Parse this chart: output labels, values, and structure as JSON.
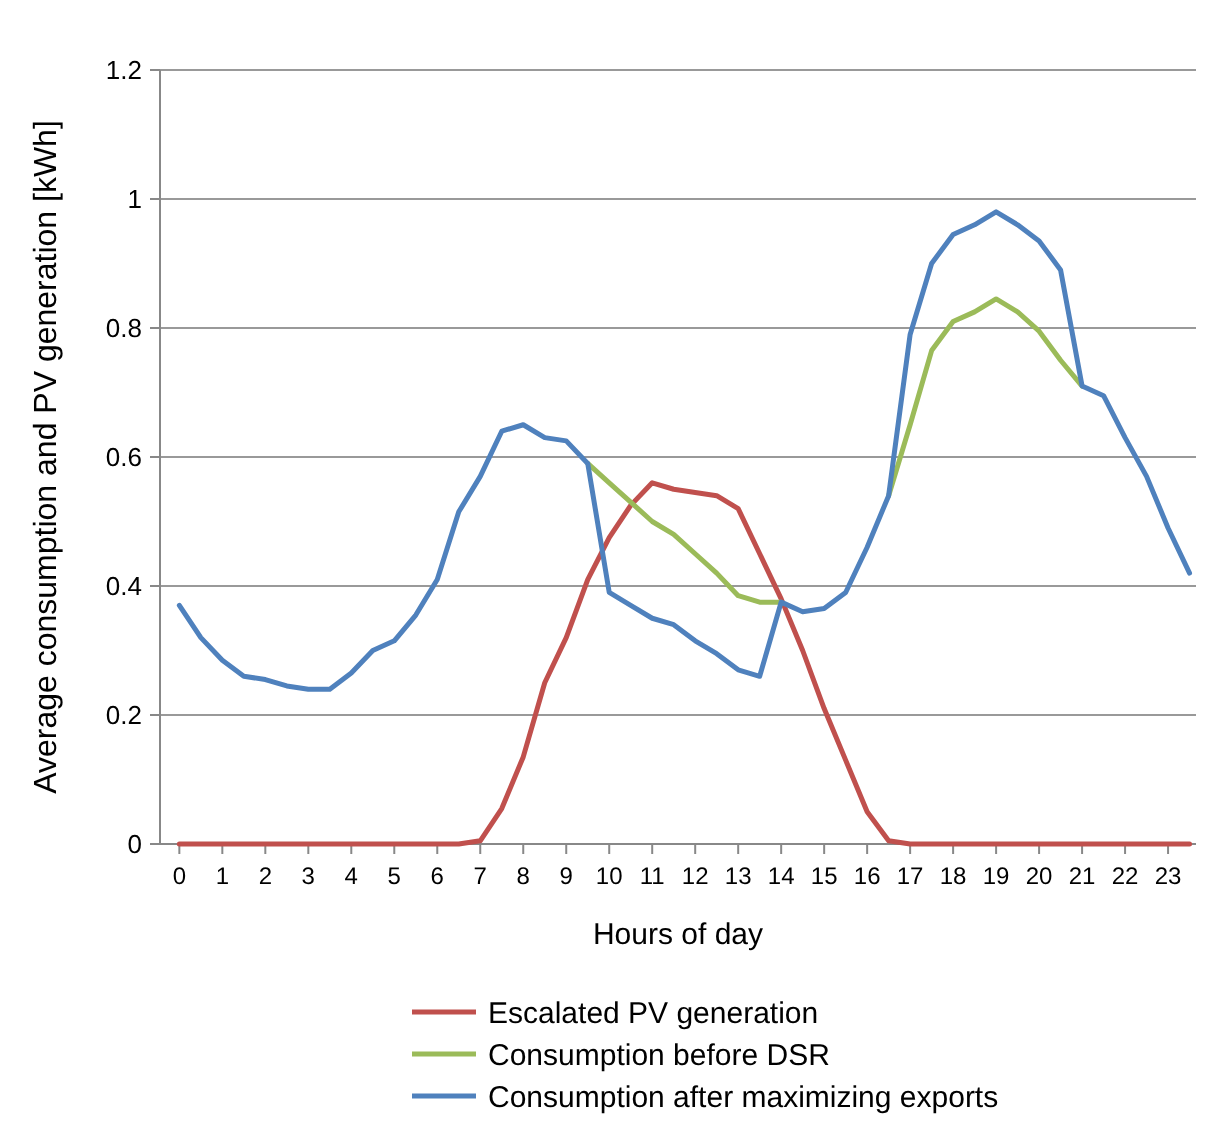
{
  "chart_data": {
    "type": "line",
    "xlabel": "Hours of day",
    "ylabel": "Average consumption and PV generation [kWh]",
    "x": [
      0,
      0.5,
      1,
      1.5,
      2,
      2.5,
      3,
      3.5,
      4,
      4.5,
      5,
      5.5,
      6,
      6.5,
      7,
      7.5,
      8,
      8.5,
      9,
      9.5,
      10,
      10.5,
      11,
      11.5,
      12,
      12.5,
      13,
      13.5,
      14,
      14.5,
      15,
      15.5,
      16,
      16.5,
      17,
      17.5,
      18,
      18.5,
      19,
      19.5,
      20,
      20.5,
      21,
      21.5,
      22,
      22.5,
      23,
      23.5
    ],
    "series": [
      {
        "name": "Escalated PV generation",
        "color": "#c0504d",
        "values": [
          0,
          0,
          0,
          0,
          0,
          0,
          0,
          0,
          0,
          0,
          0,
          0,
          0,
          0,
          0.005,
          0.055,
          0.135,
          0.25,
          0.32,
          0.41,
          0.475,
          0.525,
          0.56,
          0.55,
          0.545,
          0.54,
          0.52,
          0.45,
          0.38,
          0.3,
          0.21,
          0.13,
          0.05,
          0.005,
          0,
          0,
          0,
          0,
          0,
          0,
          0,
          0,
          0,
          0,
          0,
          0,
          0,
          0
        ]
      },
      {
        "name": "Consumption before DSR",
        "color": "#9bbb59",
        "values": [
          null,
          null,
          null,
          null,
          null,
          null,
          null,
          null,
          null,
          null,
          null,
          null,
          null,
          null,
          null,
          null,
          null,
          null,
          null,
          0.59,
          0.56,
          0.53,
          0.5,
          0.48,
          0.45,
          0.42,
          0.385,
          0.375,
          0.375,
          null,
          null,
          null,
          null,
          0.54,
          0.65,
          0.765,
          0.81,
          0.825,
          0.845,
          0.825,
          0.795,
          0.75,
          0.71,
          null,
          null,
          null,
          null,
          null
        ]
      },
      {
        "name": "Consumption after maximizing exports",
        "color": "#4f81bd",
        "values": [
          0.37,
          0.32,
          0.285,
          0.26,
          0.255,
          0.245,
          0.24,
          0.24,
          0.265,
          0.3,
          0.315,
          0.355,
          0.41,
          0.515,
          0.57,
          0.64,
          0.65,
          0.63,
          0.625,
          0.59,
          0.39,
          0.37,
          0.35,
          0.34,
          0.315,
          0.295,
          0.27,
          0.26,
          0.375,
          0.36,
          0.365,
          0.39,
          0.46,
          0.54,
          0.79,
          0.9,
          0.945,
          0.96,
          0.98,
          0.96,
          0.935,
          0.89,
          0.71,
          0.695,
          0.63,
          0.57,
          0.49,
          0.42
        ]
      }
    ],
    "xlim": [
      -0.45,
      23.65
    ],
    "xticks": [
      0,
      1,
      2,
      3,
      4,
      5,
      6,
      7,
      8,
      9,
      10,
      11,
      12,
      13,
      14,
      15,
      16,
      17,
      18,
      19,
      20,
      21,
      22,
      23
    ],
    "ylim": [
      0,
      1.2
    ],
    "yticks": [
      0,
      0.2,
      0.4,
      0.6,
      0.8,
      1,
      1.2
    ],
    "grid": "y",
    "legend": "bottom",
    "marker": "none",
    "line_style": "solid"
  }
}
